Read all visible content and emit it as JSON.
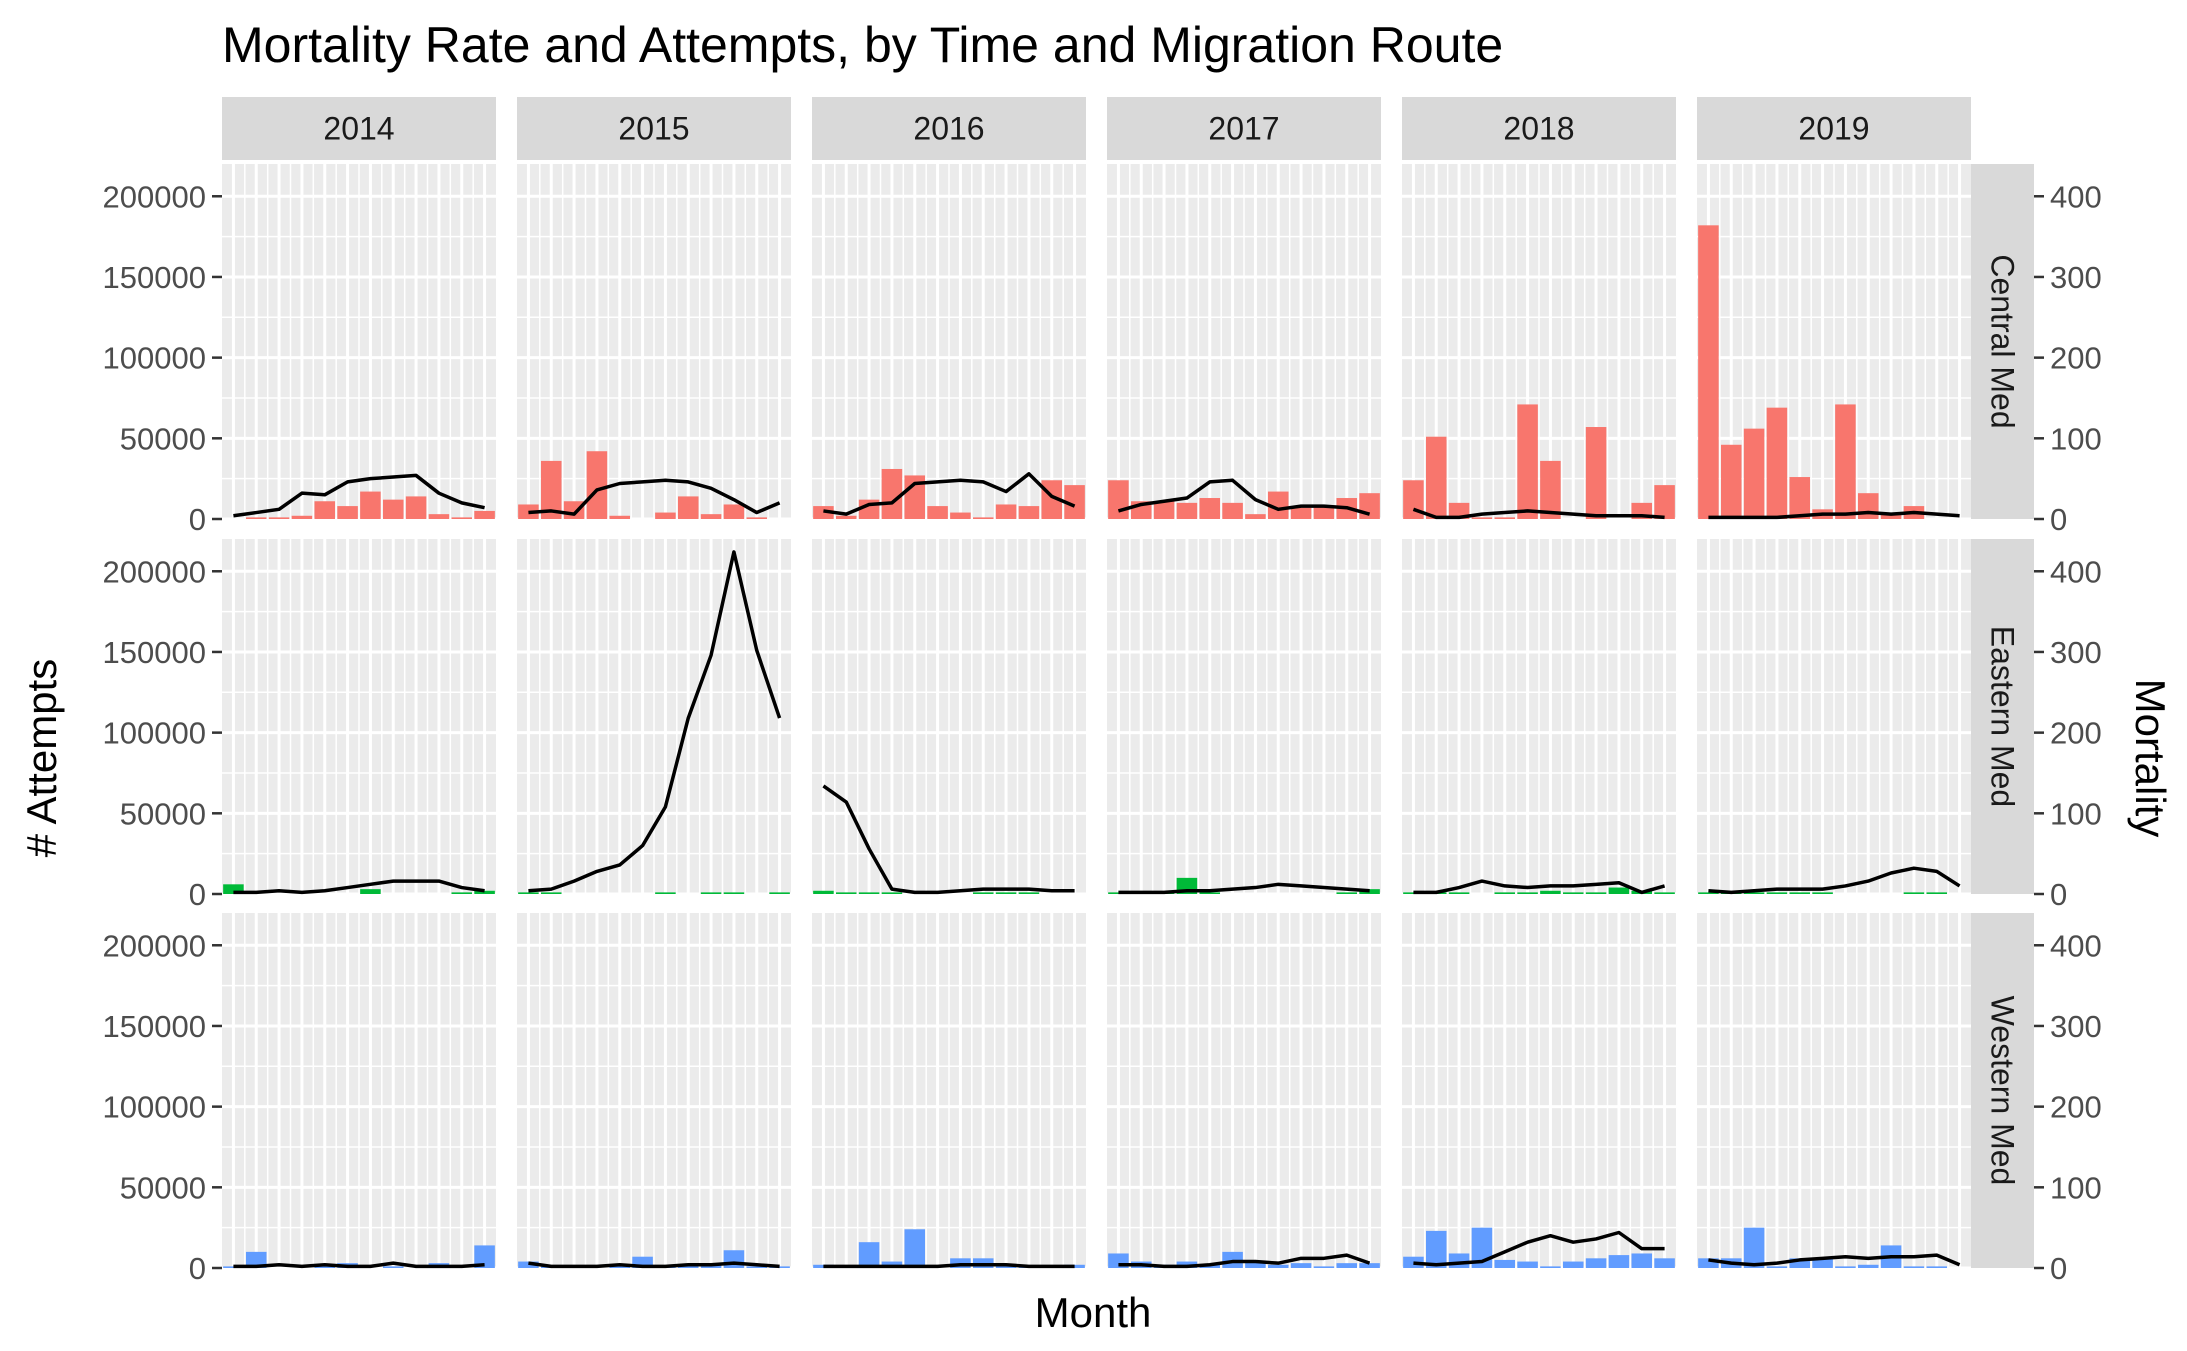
{
  "chart_data": {
    "type": "bar",
    "title": "Mortality Rate and Attempts, by Time and Migration Route",
    "xlabel": "Month",
    "ylabel": "# Attempts",
    "ylabel_right": "Mortality",
    "ylim": [
      0,
      220000
    ],
    "ylim_right": [
      0,
      440
    ],
    "yticks": [
      "0",
      "50000",
      "100000",
      "150000",
      "200000"
    ],
    "yticks_right": [
      "0",
      "100",
      "200",
      "300",
      "400"
    ],
    "years": [
      "2014",
      "2015",
      "2016",
      "2017",
      "2018",
      "2019"
    ],
    "routes": [
      "Central Med",
      "Eastern Med",
      "Western Med"
    ],
    "months": [
      1,
      2,
      3,
      4,
      5,
      6,
      7,
      8,
      9,
      10,
      11,
      12
    ],
    "series_colors": {
      "Central Med": "#F8766D",
      "Eastern Med": "#00BA38",
      "Western Med": "#619CFF"
    },
    "panels": [
      {
        "route": "Central Med",
        "year": "2014",
        "attempts": [
          0,
          1000,
          1000,
          2000,
          11000,
          8000,
          17000,
          12000,
          14000,
          3000,
          1000,
          5000
        ],
        "mortality": [
          4,
          8,
          12,
          32,
          30,
          46,
          50,
          52,
          54,
          32,
          20,
          14
        ]
      },
      {
        "route": "Central Med",
        "year": "2015",
        "attempts": [
          9000,
          36000,
          11000,
          42000,
          2000,
          0,
          4000,
          14000,
          3000,
          9000,
          1000,
          0
        ],
        "mortality": [
          8,
          10,
          6,
          36,
          44,
          46,
          48,
          46,
          38,
          24,
          8,
          20
        ]
      },
      {
        "route": "Central Med",
        "year": "2016",
        "attempts": [
          8000,
          2000,
          12000,
          31000,
          27000,
          8000,
          4000,
          1000,
          9000,
          8000,
          24000,
          21000
        ],
        "mortality": [
          10,
          6,
          18,
          20,
          44,
          46,
          48,
          46,
          34,
          56,
          28,
          16
        ]
      },
      {
        "route": "Central Med",
        "year": "2017",
        "attempts": [
          24000,
          11000,
          11000,
          10000,
          13000,
          10000,
          3000,
          17000,
          7000,
          8000,
          13000,
          16000
        ],
        "mortality": [
          10,
          18,
          22,
          26,
          46,
          48,
          24,
          12,
          16,
          16,
          14,
          6
        ]
      },
      {
        "route": "Central Med",
        "year": "2018",
        "attempts": [
          24000,
          51000,
          10000,
          1000,
          1000,
          71000,
          36000,
          0,
          57000,
          0,
          10000,
          21000
        ],
        "mortality": [
          12,
          2,
          2,
          6,
          8,
          10,
          8,
          6,
          4,
          4,
          4,
          2
        ]
      },
      {
        "route": "Central Med",
        "year": "2019",
        "attempts": [
          182000,
          46000,
          56000,
          69000,
          26000,
          6000,
          71000,
          16000,
          3000,
          8000,
          0,
          0
        ],
        "mortality": [
          2,
          2,
          2,
          2,
          4,
          6,
          6,
          8,
          6,
          8,
          6,
          4
        ]
      },
      {
        "route": "Eastern Med",
        "year": "2014",
        "attempts": [
          6000,
          0,
          0,
          0,
          0,
          0,
          3000,
          0,
          0,
          0,
          1000,
          2000
        ],
        "mortality": [
          2,
          2,
          4,
          2,
          4,
          8,
          12,
          16,
          16,
          16,
          8,
          4
        ]
      },
      {
        "route": "Eastern Med",
        "year": "2015",
        "attempts": [
          1000,
          1000,
          0,
          0,
          0,
          0,
          1000,
          0,
          1000,
          1000,
          0,
          1000
        ],
        "mortality": [
          4,
          6,
          16,
          28,
          36,
          60,
          108,
          218,
          296,
          424,
          302,
          218
        ]
      },
      {
        "route": "Eastern Med",
        "year": "2016",
        "attempts": [
          2000,
          1000,
          1000,
          1000,
          0,
          0,
          0,
          1000,
          1000,
          1000,
          0,
          0
        ],
        "mortality": [
          134,
          114,
          56,
          6,
          2,
          2,
          4,
          6,
          6,
          6,
          4,
          4
        ]
      },
      {
        "route": "Eastern Med",
        "year": "2017",
        "attempts": [
          1000,
          0,
          1000,
          10000,
          1000,
          0,
          0,
          0,
          0,
          0,
          1000,
          3000
        ],
        "mortality": [
          2,
          2,
          2,
          4,
          4,
          6,
          8,
          12,
          10,
          8,
          6,
          4
        ]
      },
      {
        "route": "Eastern Med",
        "year": "2018",
        "attempts": [
          1000,
          1000,
          1000,
          0,
          1000,
          1000,
          2000,
          1000,
          1000,
          4000,
          2000,
          1000
        ],
        "mortality": [
          2,
          2,
          8,
          16,
          10,
          8,
          10,
          10,
          12,
          14,
          2,
          10
        ]
      },
      {
        "route": "Eastern Med",
        "year": "2019",
        "attempts": [
          1000,
          1000,
          1000,
          1000,
          1000,
          1000,
          0,
          0,
          0,
          1000,
          1000,
          0
        ],
        "mortality": [
          4,
          2,
          4,
          6,
          6,
          6,
          10,
          16,
          26,
          32,
          28,
          10
        ]
      },
      {
        "route": "Western Med",
        "year": "2014",
        "attempts": [
          1000,
          10000,
          0,
          0,
          1000,
          3000,
          0,
          1000,
          0,
          3000,
          0,
          14000
        ],
        "mortality": [
          2,
          2,
          4,
          2,
          4,
          2,
          2,
          6,
          2,
          2,
          2,
          4
        ]
      },
      {
        "route": "Western Med",
        "year": "2015",
        "attempts": [
          4000,
          1000,
          0,
          0,
          1000,
          7000,
          1000,
          1000,
          2000,
          11000,
          1000,
          1000
        ],
        "mortality": [
          6,
          2,
          2,
          2,
          4,
          2,
          2,
          4,
          4,
          6,
          4,
          2
        ]
      },
      {
        "route": "Western Med",
        "year": "2016",
        "attempts": [
          2000,
          0,
          16000,
          4000,
          24000,
          0,
          6000,
          6000,
          2000,
          1000,
          0,
          2000
        ],
        "mortality": [
          2,
          2,
          2,
          2,
          2,
          2,
          4,
          4,
          4,
          2,
          2,
          2
        ]
      },
      {
        "route": "Western Med",
        "year": "2017",
        "attempts": [
          9000,
          4000,
          2000,
          4000,
          2000,
          10000,
          4000,
          2000,
          3000,
          1000,
          3000,
          3000
        ],
        "mortality": [
          4,
          4,
          2,
          2,
          4,
          8,
          8,
          6,
          12,
          12,
          16,
          6
        ]
      },
      {
        "route": "Western Med",
        "year": "2018",
        "attempts": [
          7000,
          23000,
          9000,
          25000,
          5000,
          4000,
          1000,
          4000,
          6000,
          8000,
          9000,
          6000
        ],
        "mortality": [
          6,
          4,
          6,
          8,
          20,
          32,
          40,
          32,
          36,
          44,
          24,
          24
        ]
      },
      {
        "route": "Western Med",
        "year": "2019",
        "attempts": [
          6000,
          6000,
          25000,
          1000,
          6000,
          6000,
          1000,
          2000,
          14000,
          1000,
          1000,
          0
        ],
        "mortality": [
          10,
          6,
          4,
          6,
          10,
          12,
          14,
          12,
          14,
          14,
          16,
          4
        ]
      }
    ]
  }
}
